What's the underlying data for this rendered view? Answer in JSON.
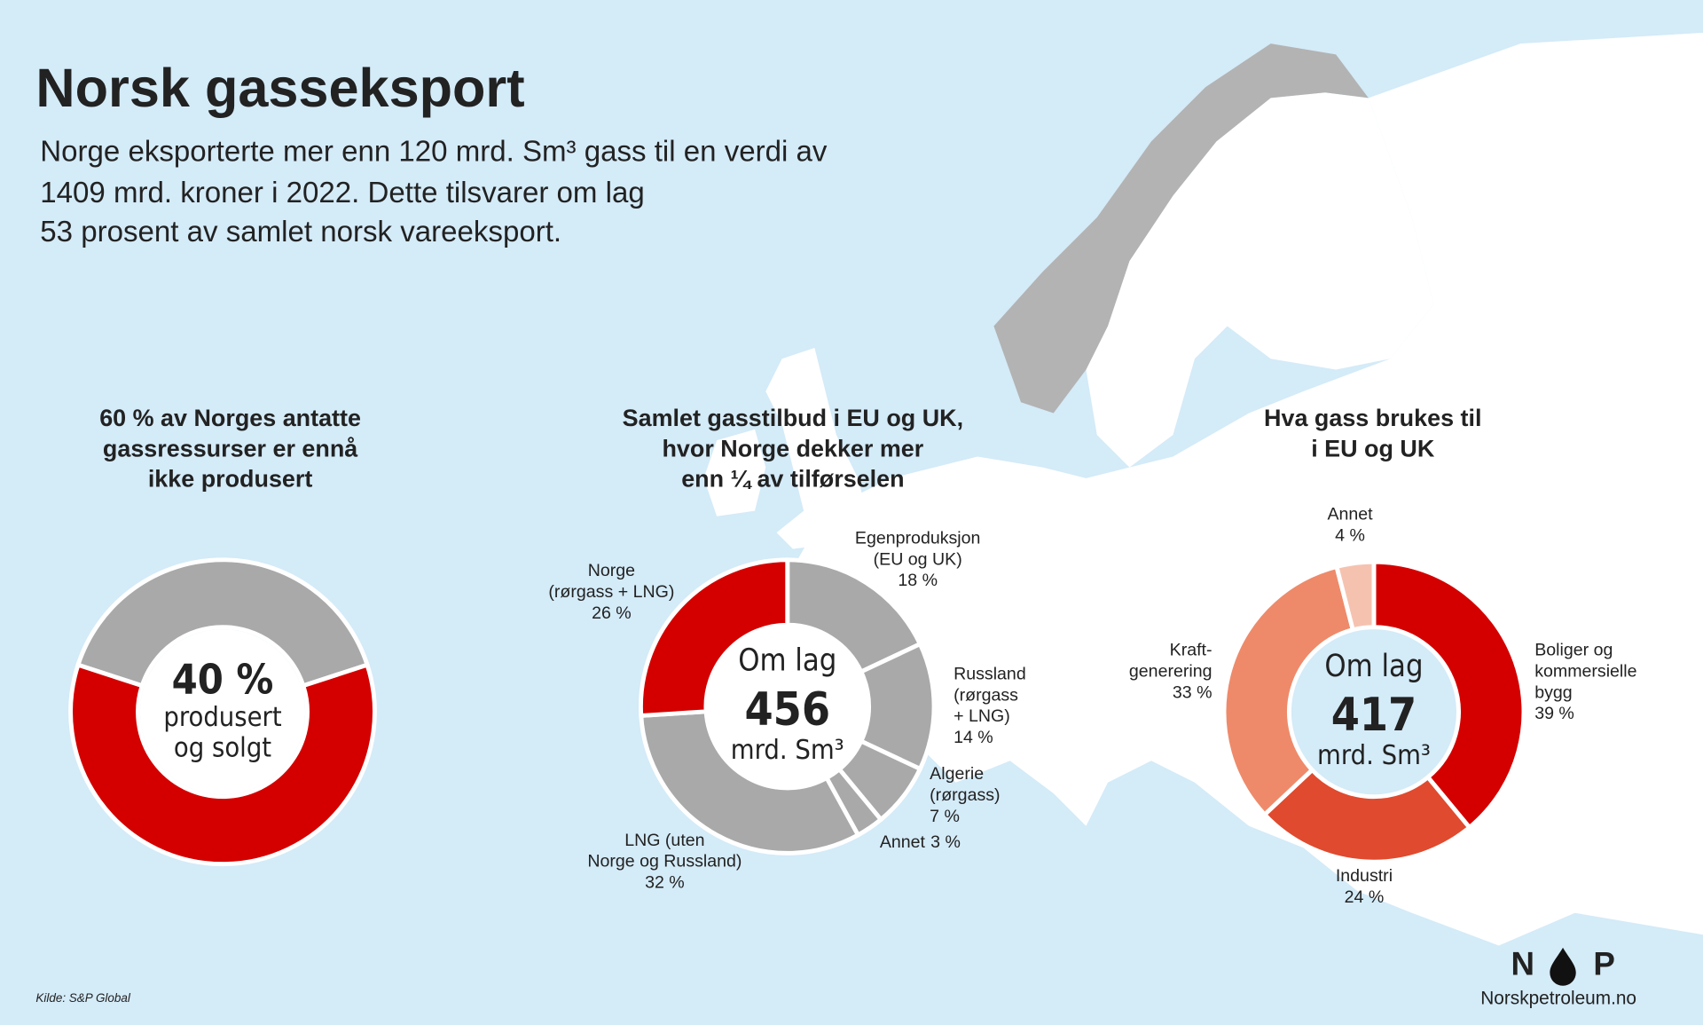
{
  "title": "Norsk gasseksport",
  "subtitle": [
    "Norge eksporterte mer enn 120 mrd. Sm³ gass til en verdi av",
    "1409 mrd. kroner i 2022. Dette tilsvarer om lag",
    "53 prosent av samlet norsk vareeksport."
  ],
  "source": "Kilde: S&P Global",
  "logo": {
    "left": "N",
    "right": "P",
    "site": "Norskpetroleum.no"
  },
  "chart_data": [
    {
      "type": "donut",
      "title": [
        "60 % av Norges antatte",
        "gassressurser er ennå",
        "ikke produsert"
      ],
      "categories": [
        null,
        null
      ],
      "values": [
        40,
        60
      ],
      "value_labels": [
        "40 %",
        null
      ],
      "colors": [
        "#a9a9a9",
        "#d40000"
      ],
      "center_text": [
        "produsert",
        "og solgt"
      ]
    },
    {
      "type": "donut",
      "title": [
        "Samlet gasstilbud i EU og UK,",
        "hvor Norge dekker mer",
        "enn ¼ av tilførselen"
      ],
      "categories": [
        [
          "Egenproduksjon",
          "(EU og UK)"
        ],
        [
          "Russland",
          "(rørgass",
          "+ LNG)"
        ],
        [
          "Algerie",
          "(rørgass)"
        ],
        [
          "Annet"
        ],
        [
          "LNG  (uten",
          "Norge og Russland)"
        ],
        [
          "Norge",
          "(rørgass + LNG)"
        ]
      ],
      "values": [
        18,
        14,
        7,
        3,
        32,
        26
      ],
      "value_labels": [
        "18 %",
        "14 %",
        "7 %",
        "3 %",
        "32 %",
        "26 %"
      ],
      "colors": [
        "#a9a9a9",
        "#a9a9a9",
        "#a9a9a9",
        "#a9a9a9",
        "#a9a9a9",
        "#d40000"
      ],
      "center_text": [
        "Om lag"
      ],
      "total": 456,
      "unit": "mrd. Sm³"
    },
    {
      "type": "donut",
      "title": [
        "Hva gass brukes til",
        "i EU og UK"
      ],
      "categories": [
        [
          "Boliger og",
          "kommersielle",
          "bygg"
        ],
        [
          "Industri"
        ],
        [
          "Kraft-",
          "generering"
        ],
        [
          "Annet"
        ]
      ],
      "values": [
        39,
        24,
        33,
        4
      ],
      "value_labels": [
        "39 %",
        "24 %",
        "33 %",
        "4 %"
      ],
      "colors": [
        "#d40000",
        "#e04a2e",
        "#ee8a6a",
        "#f6c2b0"
      ],
      "center_text": [
        "Om lag"
      ],
      "total": 417,
      "unit": "mrd. Sm³"
    }
  ]
}
